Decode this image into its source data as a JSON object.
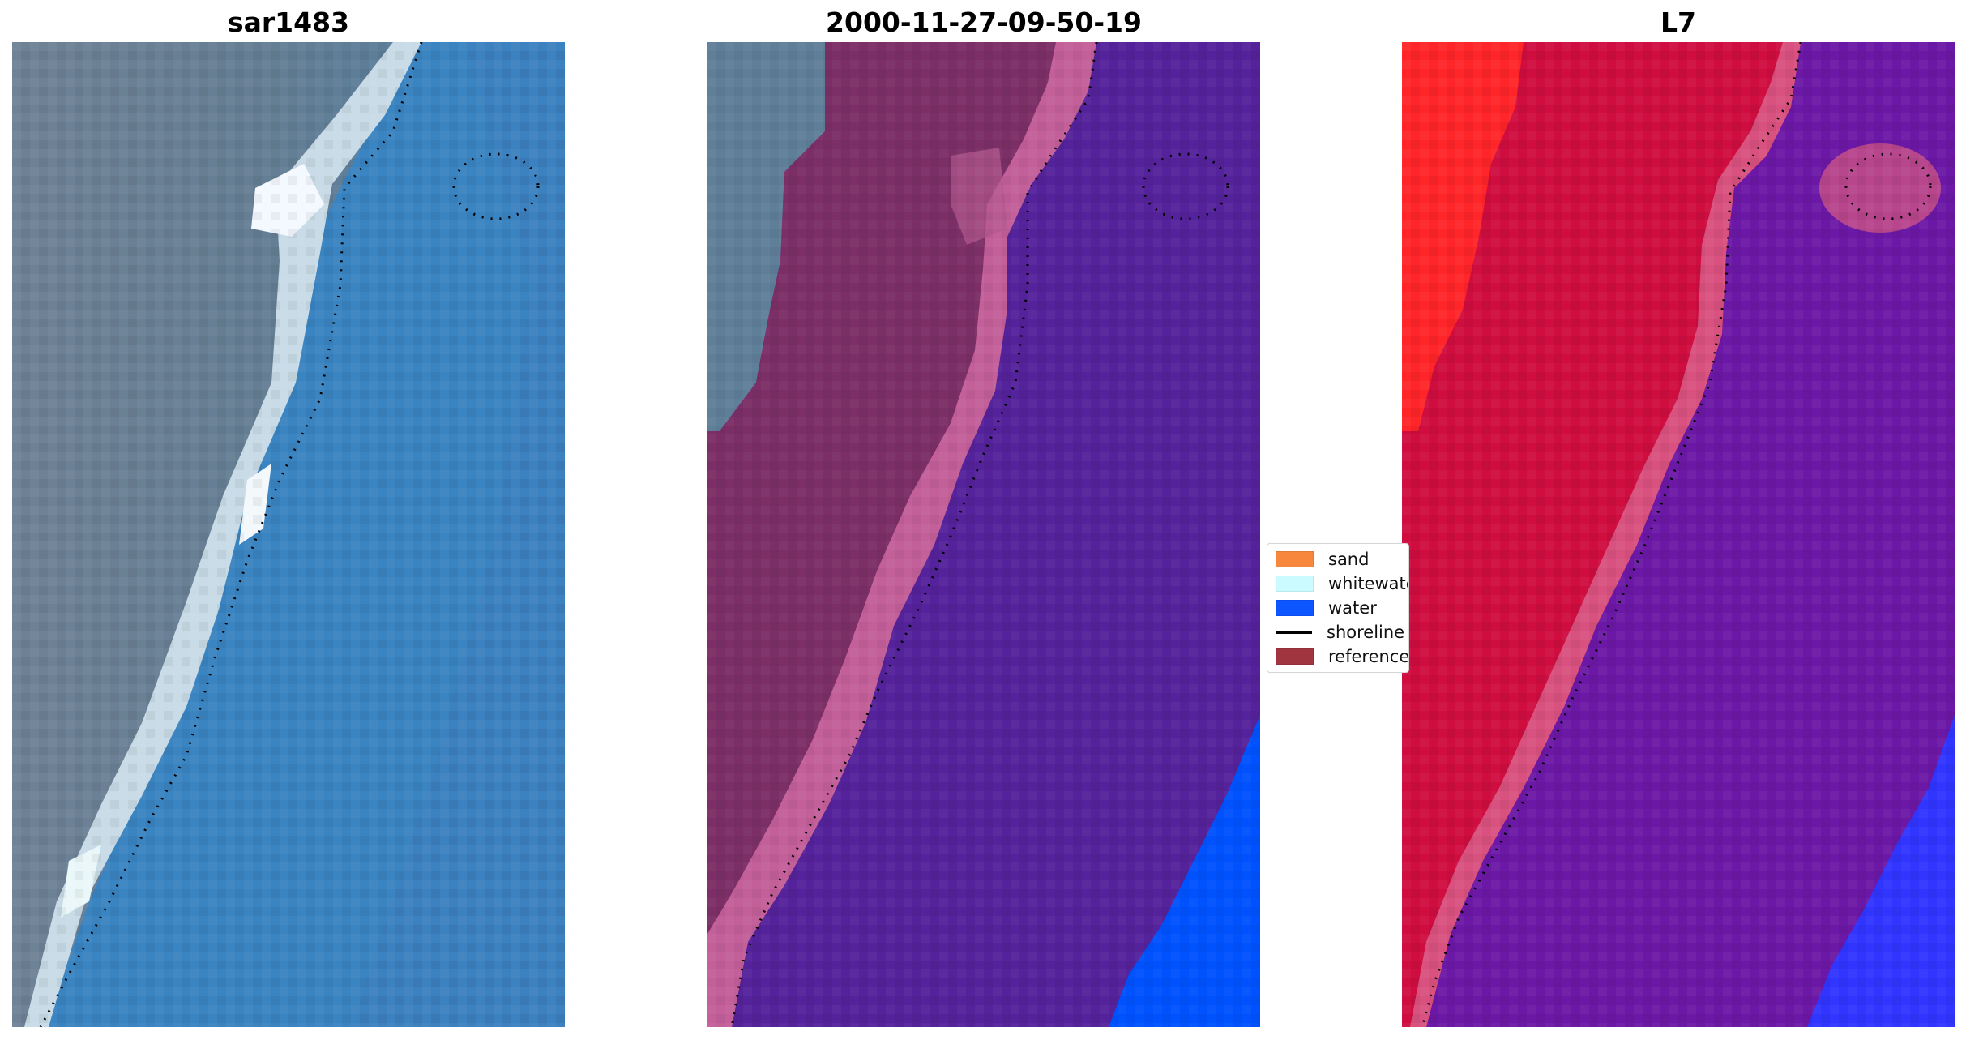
{
  "panels": [
    {
      "title": "sar1483",
      "colors": {
        "left": "#6f8297",
        "mid": "#4d86b6",
        "water": "#3b83c0",
        "whitewater": "#d9f0f8"
      }
    },
    {
      "title": "2000-11-27-09-50-19",
      "colors": {
        "sand": "#7b2f66",
        "sand_edge": "#c35f99",
        "water": "#54229a",
        "deepwater": "#0052ff",
        "land_gray": "#5f7e98"
      }
    },
    {
      "title": "L7",
      "colors": {
        "red": "#ff1f24",
        "crimson": "#cf0e3f",
        "pink": "#d9527f",
        "purple": "#6c18a6",
        "blue": "#3035ff"
      }
    }
  ],
  "legend": {
    "items": [
      {
        "label": "sand",
        "color": "#f6873c",
        "type": "patch"
      },
      {
        "label": "whitewater",
        "color": "#ccfbff",
        "type": "patch"
      },
      {
        "label": "water",
        "color": "#0d55ff",
        "type": "patch"
      },
      {
        "label": "shoreline",
        "color": "#000000",
        "type": "line"
      },
      {
        "label": "reference",
        "color": "#a03540",
        "type": "patch"
      }
    ]
  }
}
